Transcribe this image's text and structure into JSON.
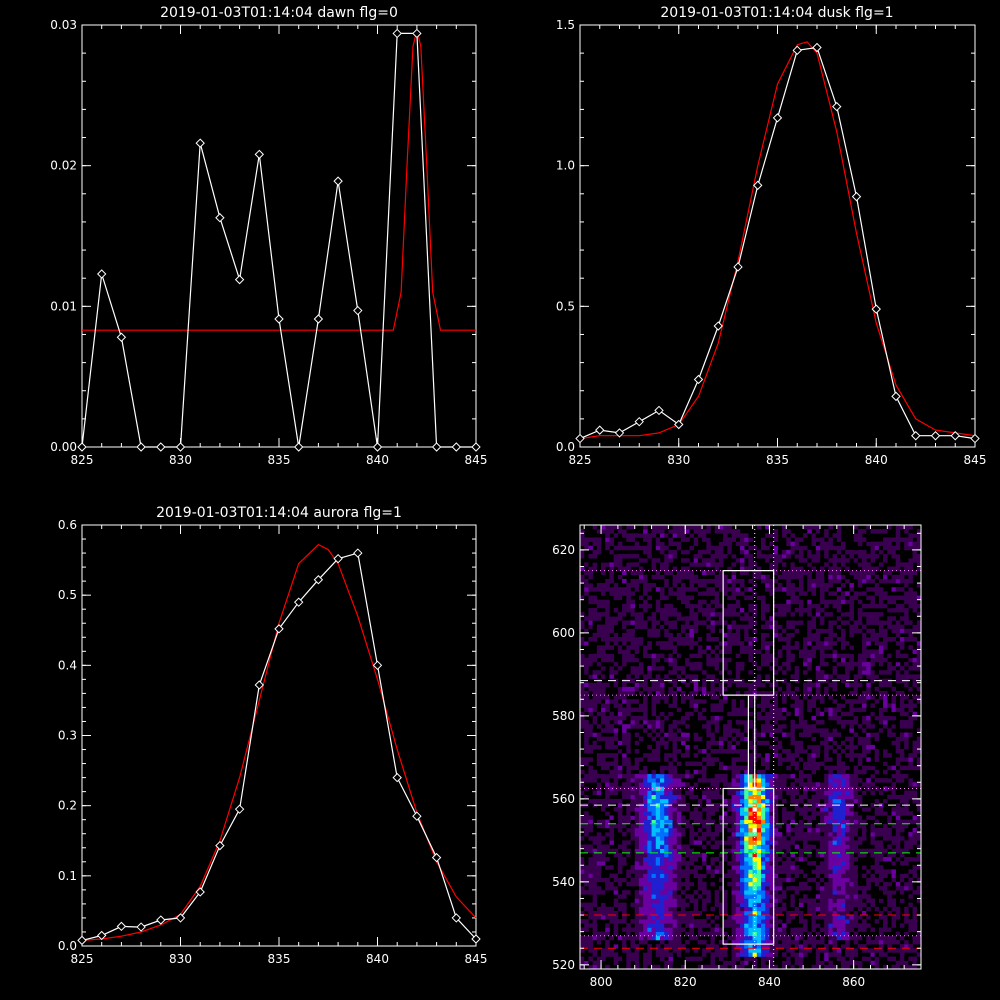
{
  "chart_data": [
    {
      "type": "line",
      "title": "2019-01-03T01:14:04 dawn flg=0",
      "xlim": [
        825,
        845
      ],
      "ylim": [
        0,
        0.03
      ],
      "xticks": [
        825,
        830,
        835,
        840,
        845
      ],
      "yticks": [
        0.0,
        0.01,
        0.02,
        0.03
      ],
      "ytick_labels": [
        "0.00",
        "0.01",
        "0.02",
        "0.03"
      ],
      "series": [
        {
          "kind": "data",
          "color": "#ffffff",
          "marker": "diamond",
          "x": [
            825,
            826,
            827,
            828,
            829,
            830,
            831,
            832,
            833,
            834,
            835,
            836,
            837,
            838,
            839,
            840,
            841,
            842,
            843,
            844,
            845
          ],
          "y": [
            0.0,
            0.0123,
            0.0078,
            0.0,
            0.0,
            0.0,
            0.0216,
            0.0163,
            0.0119,
            0.0208,
            0.0091,
            0.0,
            0.0091,
            0.0189,
            0.0097,
            0.0,
            0.0294,
            0.0294,
            0.0,
            0.0,
            0.0
          ]
        },
        {
          "kind": "fit",
          "color": "#ff0000",
          "x": [
            825,
            840.8,
            841.2,
            841.5,
            841.8,
            842.0,
            842.2,
            842.5,
            842.8,
            843.2,
            845
          ],
          "y": [
            0.0083,
            0.0083,
            0.011,
            0.02,
            0.0285,
            0.0296,
            0.0285,
            0.02,
            0.011,
            0.0083,
            0.0083
          ]
        }
      ]
    },
    {
      "type": "line",
      "title": "2019-01-03T01:14:04 dusk flg=1",
      "xlim": [
        825,
        845
      ],
      "ylim": [
        0,
        1.5
      ],
      "xticks": [
        825,
        830,
        835,
        840,
        845
      ],
      "yticks": [
        0.0,
        0.5,
        1.0,
        1.5
      ],
      "ytick_labels": [
        "0.0",
        "0.5",
        "1.0",
        "1.5"
      ],
      "series": [
        {
          "kind": "data",
          "color": "#ffffff",
          "marker": "diamond",
          "x": [
            825,
            826,
            827,
            828,
            829,
            830,
            831,
            832,
            833,
            834,
            835,
            836,
            837,
            838,
            839,
            840,
            841,
            842,
            843,
            844,
            845
          ],
          "y": [
            0.03,
            0.06,
            0.05,
            0.09,
            0.13,
            0.08,
            0.24,
            0.43,
            0.64,
            0.93,
            1.17,
            1.41,
            1.42,
            1.21,
            0.89,
            0.49,
            0.18,
            0.04,
            0.04,
            0.04,
            0.03
          ]
        },
        {
          "kind": "fit",
          "color": "#ff0000",
          "x": [
            825,
            826,
            827,
            828,
            829,
            830,
            831,
            832,
            833,
            834,
            835,
            836,
            836.5,
            837,
            838,
            839,
            840,
            841,
            842,
            843,
            844,
            845
          ],
          "y": [
            0.03,
            0.04,
            0.04,
            0.04,
            0.05,
            0.08,
            0.18,
            0.37,
            0.66,
            1.0,
            1.29,
            1.43,
            1.44,
            1.4,
            1.12,
            0.76,
            0.44,
            0.22,
            0.1,
            0.06,
            0.05,
            0.04
          ]
        }
      ]
    },
    {
      "type": "line",
      "title": "2019-01-03T01:14:04 aurora flg=1",
      "xlim": [
        825,
        845
      ],
      "ylim": [
        0,
        0.6
      ],
      "xticks": [
        825,
        830,
        835,
        840,
        845
      ],
      "yticks": [
        0.0,
        0.1,
        0.2,
        0.3,
        0.4,
        0.5,
        0.6
      ],
      "ytick_labels": [
        "0.0",
        "0.1",
        "0.2",
        "0.3",
        "0.4",
        "0.5",
        "0.6"
      ],
      "series": [
        {
          "kind": "data",
          "color": "#ffffff",
          "marker": "diamond",
          "x": [
            825,
            826,
            827,
            828,
            829,
            830,
            831,
            832,
            833,
            834,
            835,
            836,
            837,
            838,
            839,
            840,
            841,
            842,
            843,
            844,
            845
          ],
          "y": [
            0.008,
            0.015,
            0.028,
            0.027,
            0.037,
            0.04,
            0.077,
            0.143,
            0.195,
            0.372,
            0.452,
            0.49,
            0.522,
            0.552,
            0.56,
            0.4,
            0.24,
            0.185,
            0.126,
            0.04,
            0.01
          ]
        },
        {
          "kind": "fit",
          "color": "#ff0000",
          "x": [
            825,
            826,
            827,
            828,
            829,
            830,
            831,
            832,
            833,
            834,
            835,
            836,
            837,
            837.5,
            838,
            839,
            840,
            841,
            842,
            843,
            844,
            845
          ],
          "y": [
            0.008,
            0.01,
            0.014,
            0.02,
            0.03,
            0.045,
            0.085,
            0.15,
            0.24,
            0.35,
            0.46,
            0.545,
            0.572,
            0.565,
            0.545,
            0.47,
            0.38,
            0.28,
            0.19,
            0.12,
            0.07,
            0.04
          ]
        }
      ]
    },
    {
      "type": "heatmap",
      "xlim": [
        795,
        876
      ],
      "ylim": [
        519,
        626
      ],
      "xticks": [
        800,
        820,
        840,
        860
      ],
      "yticks": [
        520,
        540,
        560,
        580,
        600,
        620
      ],
      "colormap": [
        "#000000",
        "#3a0050",
        "#6a00a0",
        "#2020d0",
        "#0070ff",
        "#00c0ff",
        "#40ffa0",
        "#ffff00",
        "#ff8000",
        "#ff0000",
        "#ffffff"
      ],
      "bands": [
        {
          "x_center": 813.5,
          "x_width": 4.5,
          "y_range": [
            526,
            566
          ],
          "peak": 0.55,
          "peak_y": 556
        },
        {
          "x_center": 836.5,
          "x_width": 4.0,
          "y_range": [
            522,
            566
          ],
          "peak": 1.0,
          "peak_y": 556
        },
        {
          "x_center": 856.5,
          "x_width": 3.5,
          "y_range": [
            526,
            566
          ],
          "peak": 0.3,
          "peak_y": 558
        }
      ],
      "boxes": [
        {
          "x": [
            829,
            841
          ],
          "y": [
            525,
            562.5
          ]
        },
        {
          "x": [
            829,
            841
          ],
          "y": [
            585,
            615
          ]
        }
      ],
      "box_connector_x": [
        835,
        836.5
      ],
      "vlines_dotted": [
        836.5,
        841
      ],
      "hlines": [
        {
          "y": 615,
          "color": "#ff80ff",
          "style": "dotted"
        },
        {
          "y": 588.5,
          "color": "#ffffff",
          "style": "dashed"
        },
        {
          "y": 585,
          "color": "#ff80ff",
          "style": "dotted"
        },
        {
          "y": 562.5,
          "color": "#ff80ff",
          "style": "dotted"
        },
        {
          "y": 558.5,
          "color": "#ffffff",
          "style": "dashed"
        },
        {
          "y": 554,
          "color": "#00ff00",
          "style": "dashed"
        },
        {
          "y": 547,
          "color": "#00ff00",
          "style": "dashed"
        },
        {
          "y": 532,
          "color": "#ff0000",
          "style": "dashed"
        },
        {
          "y": 527,
          "color": "#ff80ff",
          "style": "dotted"
        },
        {
          "y": 524,
          "color": "#ff0000",
          "style": "dashed"
        }
      ]
    }
  ]
}
